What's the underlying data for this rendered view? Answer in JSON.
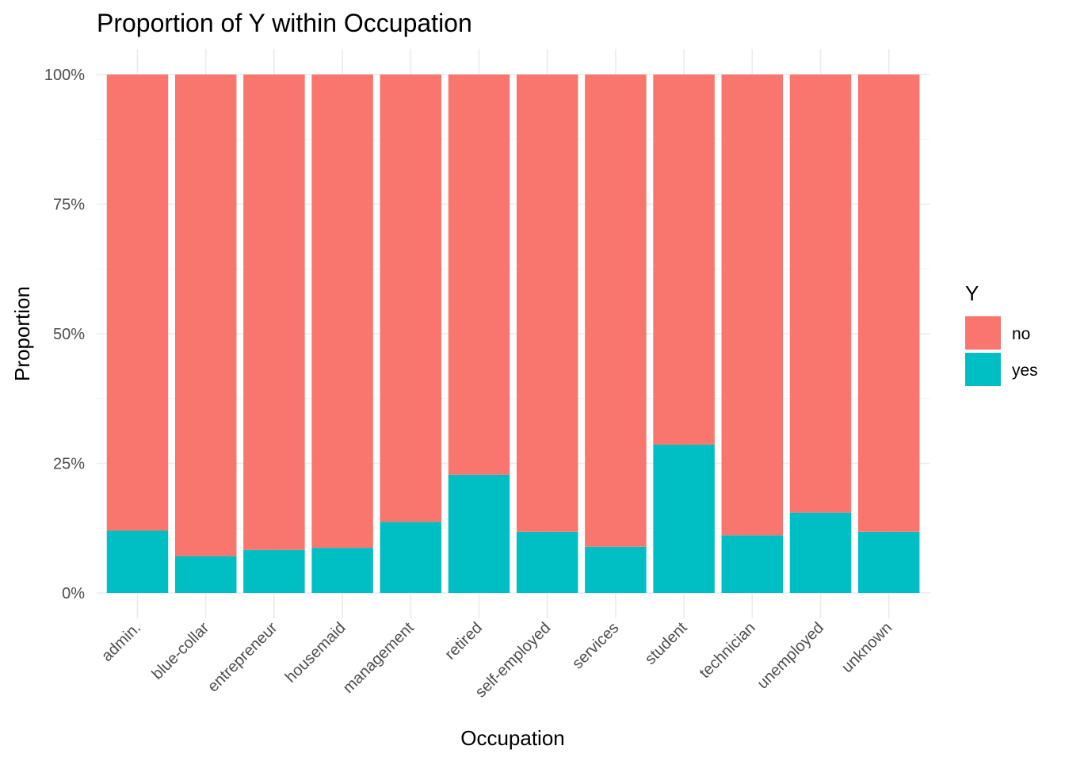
{
  "chart_data": {
    "type": "bar",
    "stacked": true,
    "title": "Proportion of Y within Occupation",
    "xlabel": "Occupation",
    "ylabel": "Proportion",
    "ylim": [
      0,
      1
    ],
    "y_ticks": [
      0,
      0.25,
      0.5,
      0.75,
      1
    ],
    "y_tick_labels": [
      "0%",
      "25%",
      "50%",
      "75%",
      "100%"
    ],
    "categories": [
      "admin.",
      "blue-collar",
      "entrepreneur",
      "housemaid",
      "management",
      "retired",
      "self-employed",
      "services",
      "student",
      "technician",
      "unemployed",
      "unknown"
    ],
    "series": [
      {
        "name": "no",
        "color": "#F8766D",
        "values": [
          0.88,
          0.929,
          0.917,
          0.913,
          0.863,
          0.772,
          0.882,
          0.911,
          0.714,
          0.889,
          0.845,
          0.882
        ]
      },
      {
        "name": "yes",
        "color": "#00BFC4",
        "values": [
          0.12,
          0.071,
          0.083,
          0.087,
          0.137,
          0.228,
          0.118,
          0.089,
          0.286,
          0.111,
          0.155,
          0.118
        ]
      }
    ],
    "legend": {
      "title": "Y",
      "position": "right"
    },
    "grid": true
  }
}
